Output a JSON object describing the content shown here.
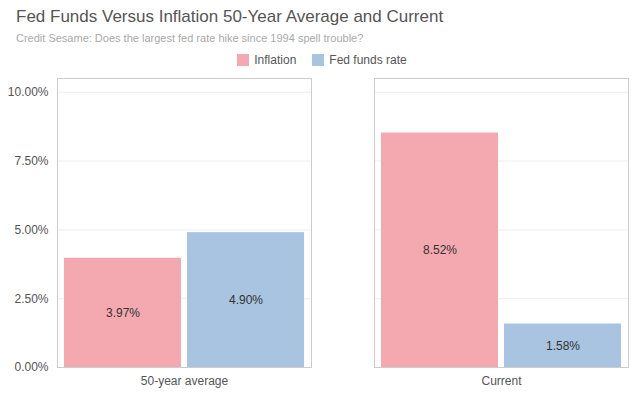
{
  "chart_data": {
    "type": "bar",
    "title": "Fed Funds Versus Inflation 50-Year Average and Current",
    "subtitle": "Credit Sesame: Does the largest fed rate hike since 1994 spell trouble?",
    "categories": [
      "50-year average",
      "Current"
    ],
    "series": [
      {
        "name": "Inflation",
        "color": "#F4A8B0",
        "values": [
          3.97,
          8.52
        ],
        "value_labels": [
          "3.97%",
          "8.52%"
        ]
      },
      {
        "name": "Fed funds rate",
        "color": "#A8C4E0",
        "values": [
          4.9,
          1.58
        ],
        "value_labels": [
          "4.90%",
          "1.58%"
        ]
      }
    ],
    "ylim": [
      0,
      10.5
    ],
    "yticks": [
      {
        "value": 0,
        "label": "0.00%"
      },
      {
        "value": 2.5,
        "label": "2.50%"
      },
      {
        "value": 5.0,
        "label": "5.00%"
      },
      {
        "value": 7.5,
        "label": "7.50%"
      },
      {
        "value": 10.0,
        "label": "10.00%"
      }
    ],
    "grid": true,
    "legend": "top",
    "data_labels": true
  }
}
